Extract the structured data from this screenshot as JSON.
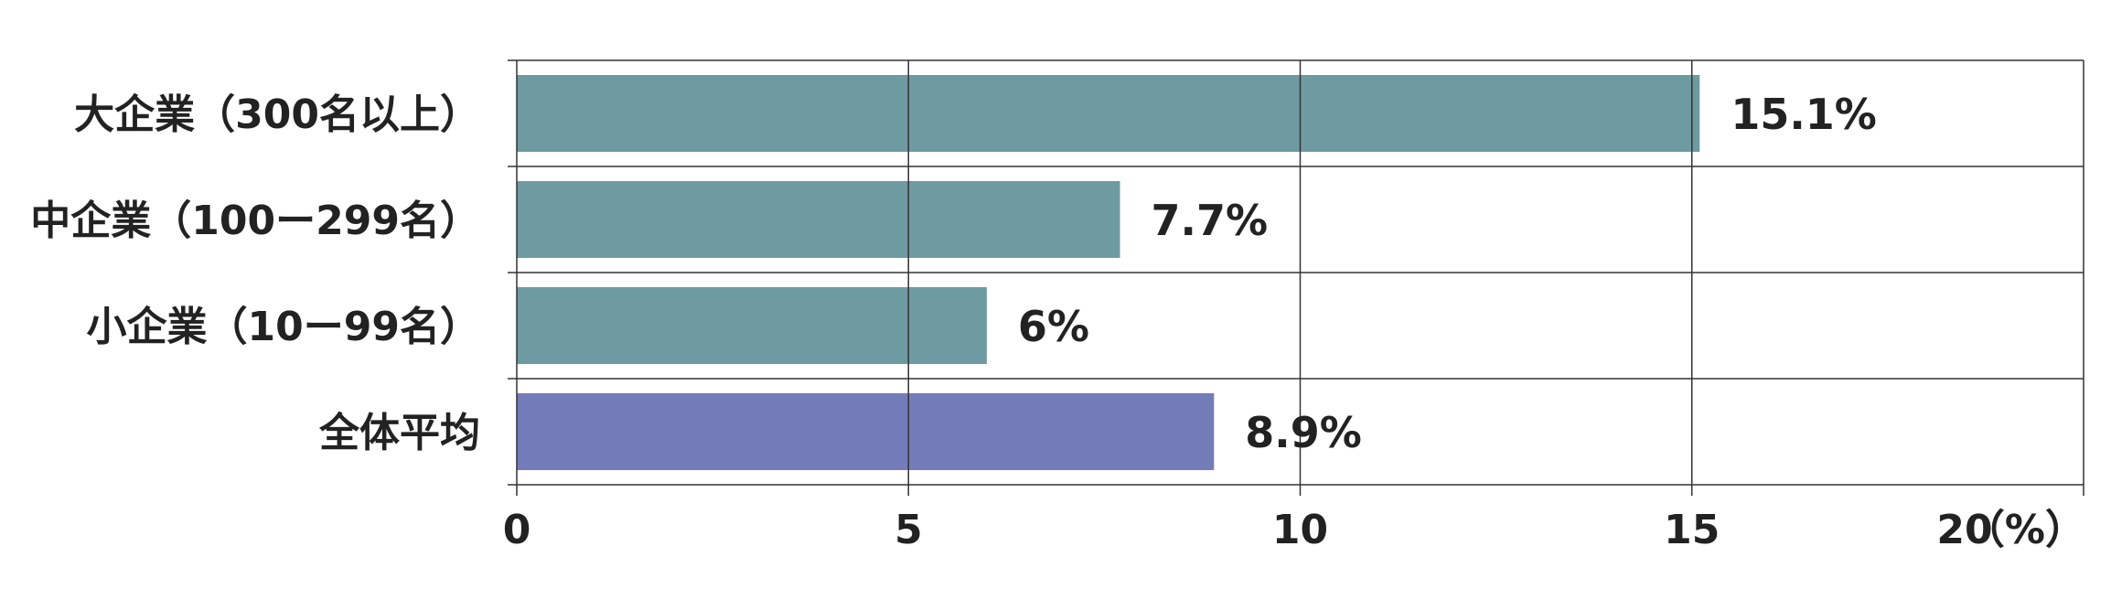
{
  "chart_data": {
    "type": "bar",
    "orientation": "horizontal",
    "categories": [
      "大企業（300名以上）",
      "中企業（100ー299名）",
      "小企業（10ー99名）",
      "全体平均"
    ],
    "values": [
      15.1,
      7.7,
      6,
      8.9
    ],
    "value_labels": [
      "15.1%",
      "7.7%",
      "6%",
      "8.9%"
    ],
    "bar_colors": [
      "#6e9aa1",
      "#6e9aa1",
      "#6e9aa1",
      "#737bb8"
    ],
    "xlim": [
      0,
      20
    ],
    "xticks": [
      0,
      5,
      10,
      15,
      20
    ],
    "xtick_labels": [
      "0",
      "5",
      "10",
      "15",
      "20"
    ],
    "xunit": "（%）",
    "title": "",
    "xlabel": "",
    "ylabel": "",
    "grid": true,
    "legend": "none"
  }
}
